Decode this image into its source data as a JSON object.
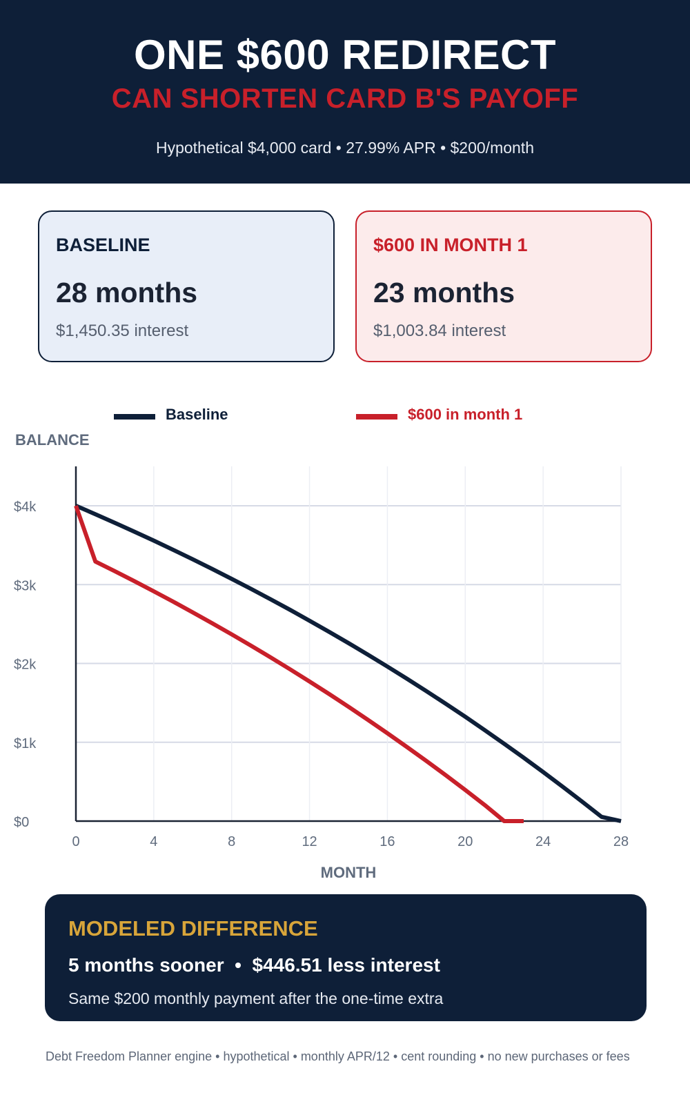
{
  "header": {
    "title": "ONE $600 REDIRECT",
    "subtitle": "CAN SHORTEN CARD B'S PAYOFF",
    "meta": "Hypothetical $4,000 card • 27.99% APR • $200/month"
  },
  "cards": {
    "baseline": {
      "label": "BASELINE",
      "months": "28 months",
      "interest": "$1,450.35 interest"
    },
    "redirect": {
      "label": "$600 IN MONTH 1",
      "months": "23 months",
      "interest": "$1,003.84 interest"
    }
  },
  "colors": {
    "navy": "#0e1f38",
    "red": "#c8202a",
    "gold": "#d8a53a",
    "grid": "#d9dde8"
  },
  "chart_data": {
    "type": "line",
    "ylabel": "BALANCE",
    "xlabel": "MONTH",
    "xlim": [
      0,
      28
    ],
    "ylim": [
      0,
      4500
    ],
    "xticks": [
      0,
      4,
      8,
      12,
      16,
      20,
      24,
      28
    ],
    "xtick_labels": [
      "0",
      "4",
      "8",
      "12",
      "16",
      "20",
      "24",
      "28"
    ],
    "yticks": [
      0,
      1000,
      2000,
      3000,
      4000
    ],
    "ytick_labels": [
      "$0",
      "$1k",
      "$2k",
      "$3k",
      "$4k"
    ],
    "grid": true,
    "legend_position": "top",
    "series": [
      {
        "name": "Baseline",
        "color": "#0e1f38",
        "x": [
          0,
          1,
          2,
          3,
          4,
          5,
          6,
          7,
          8,
          9,
          10,
          11,
          12,
          13,
          14,
          15,
          16,
          17,
          18,
          19,
          20,
          21,
          22,
          23,
          24,
          25,
          26,
          27,
          28
        ],
        "y": [
          4000,
          3893,
          3784,
          3672,
          3558,
          3441,
          3321,
          3198,
          3073,
          2945,
          2814,
          2680,
          2542,
          2402,
          2258,
          2111,
          1961,
          1807,
          1649,
          1488,
          1323,
          1154,
          981,
          804,
          623,
          437,
          248,
          54,
          0
        ]
      },
      {
        "name": "$600 in month 1",
        "color": "#c8202a",
        "x": [
          0,
          1,
          2,
          3,
          4,
          5,
          6,
          7,
          8,
          9,
          10,
          11,
          12,
          13,
          14,
          15,
          16,
          17,
          18,
          19,
          20,
          21,
          22,
          23
        ],
        "y": [
          4000,
          3293,
          3170,
          3044,
          2915,
          2783,
          2648,
          2510,
          2369,
          2225,
          2077,
          1926,
          1771,
          1613,
          1451,
          1285,
          1115,
          941,
          763,
          581,
          395,
          204,
          0,
          0
        ]
      }
    ]
  },
  "difference": {
    "title": "MODELED DIFFERENCE",
    "line": "5 months sooner  •  $446.51 less interest",
    "note": "Same $200 monthly payment after the one-time extra"
  },
  "footer": "Debt Freedom Planner engine • hypothetical • monthly APR/12 • cent rounding • no new purchases or fees"
}
